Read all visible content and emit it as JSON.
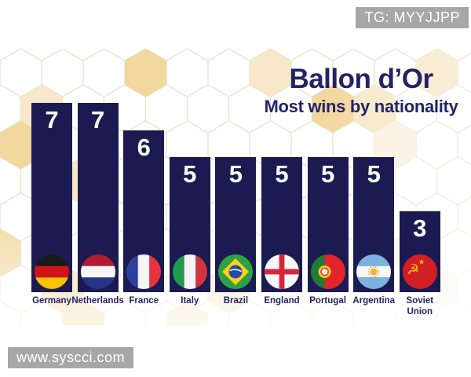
{
  "watermarks": {
    "tg_badge": "TG: MYYJJPP",
    "site_badge": "www.syscci.com"
  },
  "header": {
    "title": "Ballon d’Or",
    "subtitle": "Most wins by nationality"
  },
  "chart_data": {
    "type": "bar",
    "title": "Ballon d’Or",
    "subtitle": "Most wins by nationality",
    "categories": [
      "Germany",
      "Netherlands",
      "France",
      "Italy",
      "Brazil",
      "England",
      "Portugal",
      "Argentina",
      "Soviet Union"
    ],
    "values": [
      7,
      7,
      6,
      5,
      5,
      5,
      5,
      5,
      3
    ],
    "flag_icons": [
      "flag-germany-icon",
      "flag-netherlands-icon",
      "flag-france-icon",
      "flag-italy-icon",
      "flag-brazil-icon",
      "flag-england-icon",
      "flag-portugal-icon",
      "flag-argentina-icon",
      "flag-soviet-union-icon"
    ],
    "ylim": [
      0,
      7
    ],
    "grid": false,
    "legend": false,
    "value_labels": "inside-top",
    "bar_color": "#1b1b52",
    "value_label_color": "#ffffff"
  },
  "colors": {
    "bar_navy": "#1b1b52",
    "title_navy": "#232366",
    "badge_gray": "#a7a7a7",
    "hex_amber_strong": "#f2d79e",
    "hex_amber_light": "#f6e8c8",
    "hex_amber_faint": "#faf1de"
  }
}
